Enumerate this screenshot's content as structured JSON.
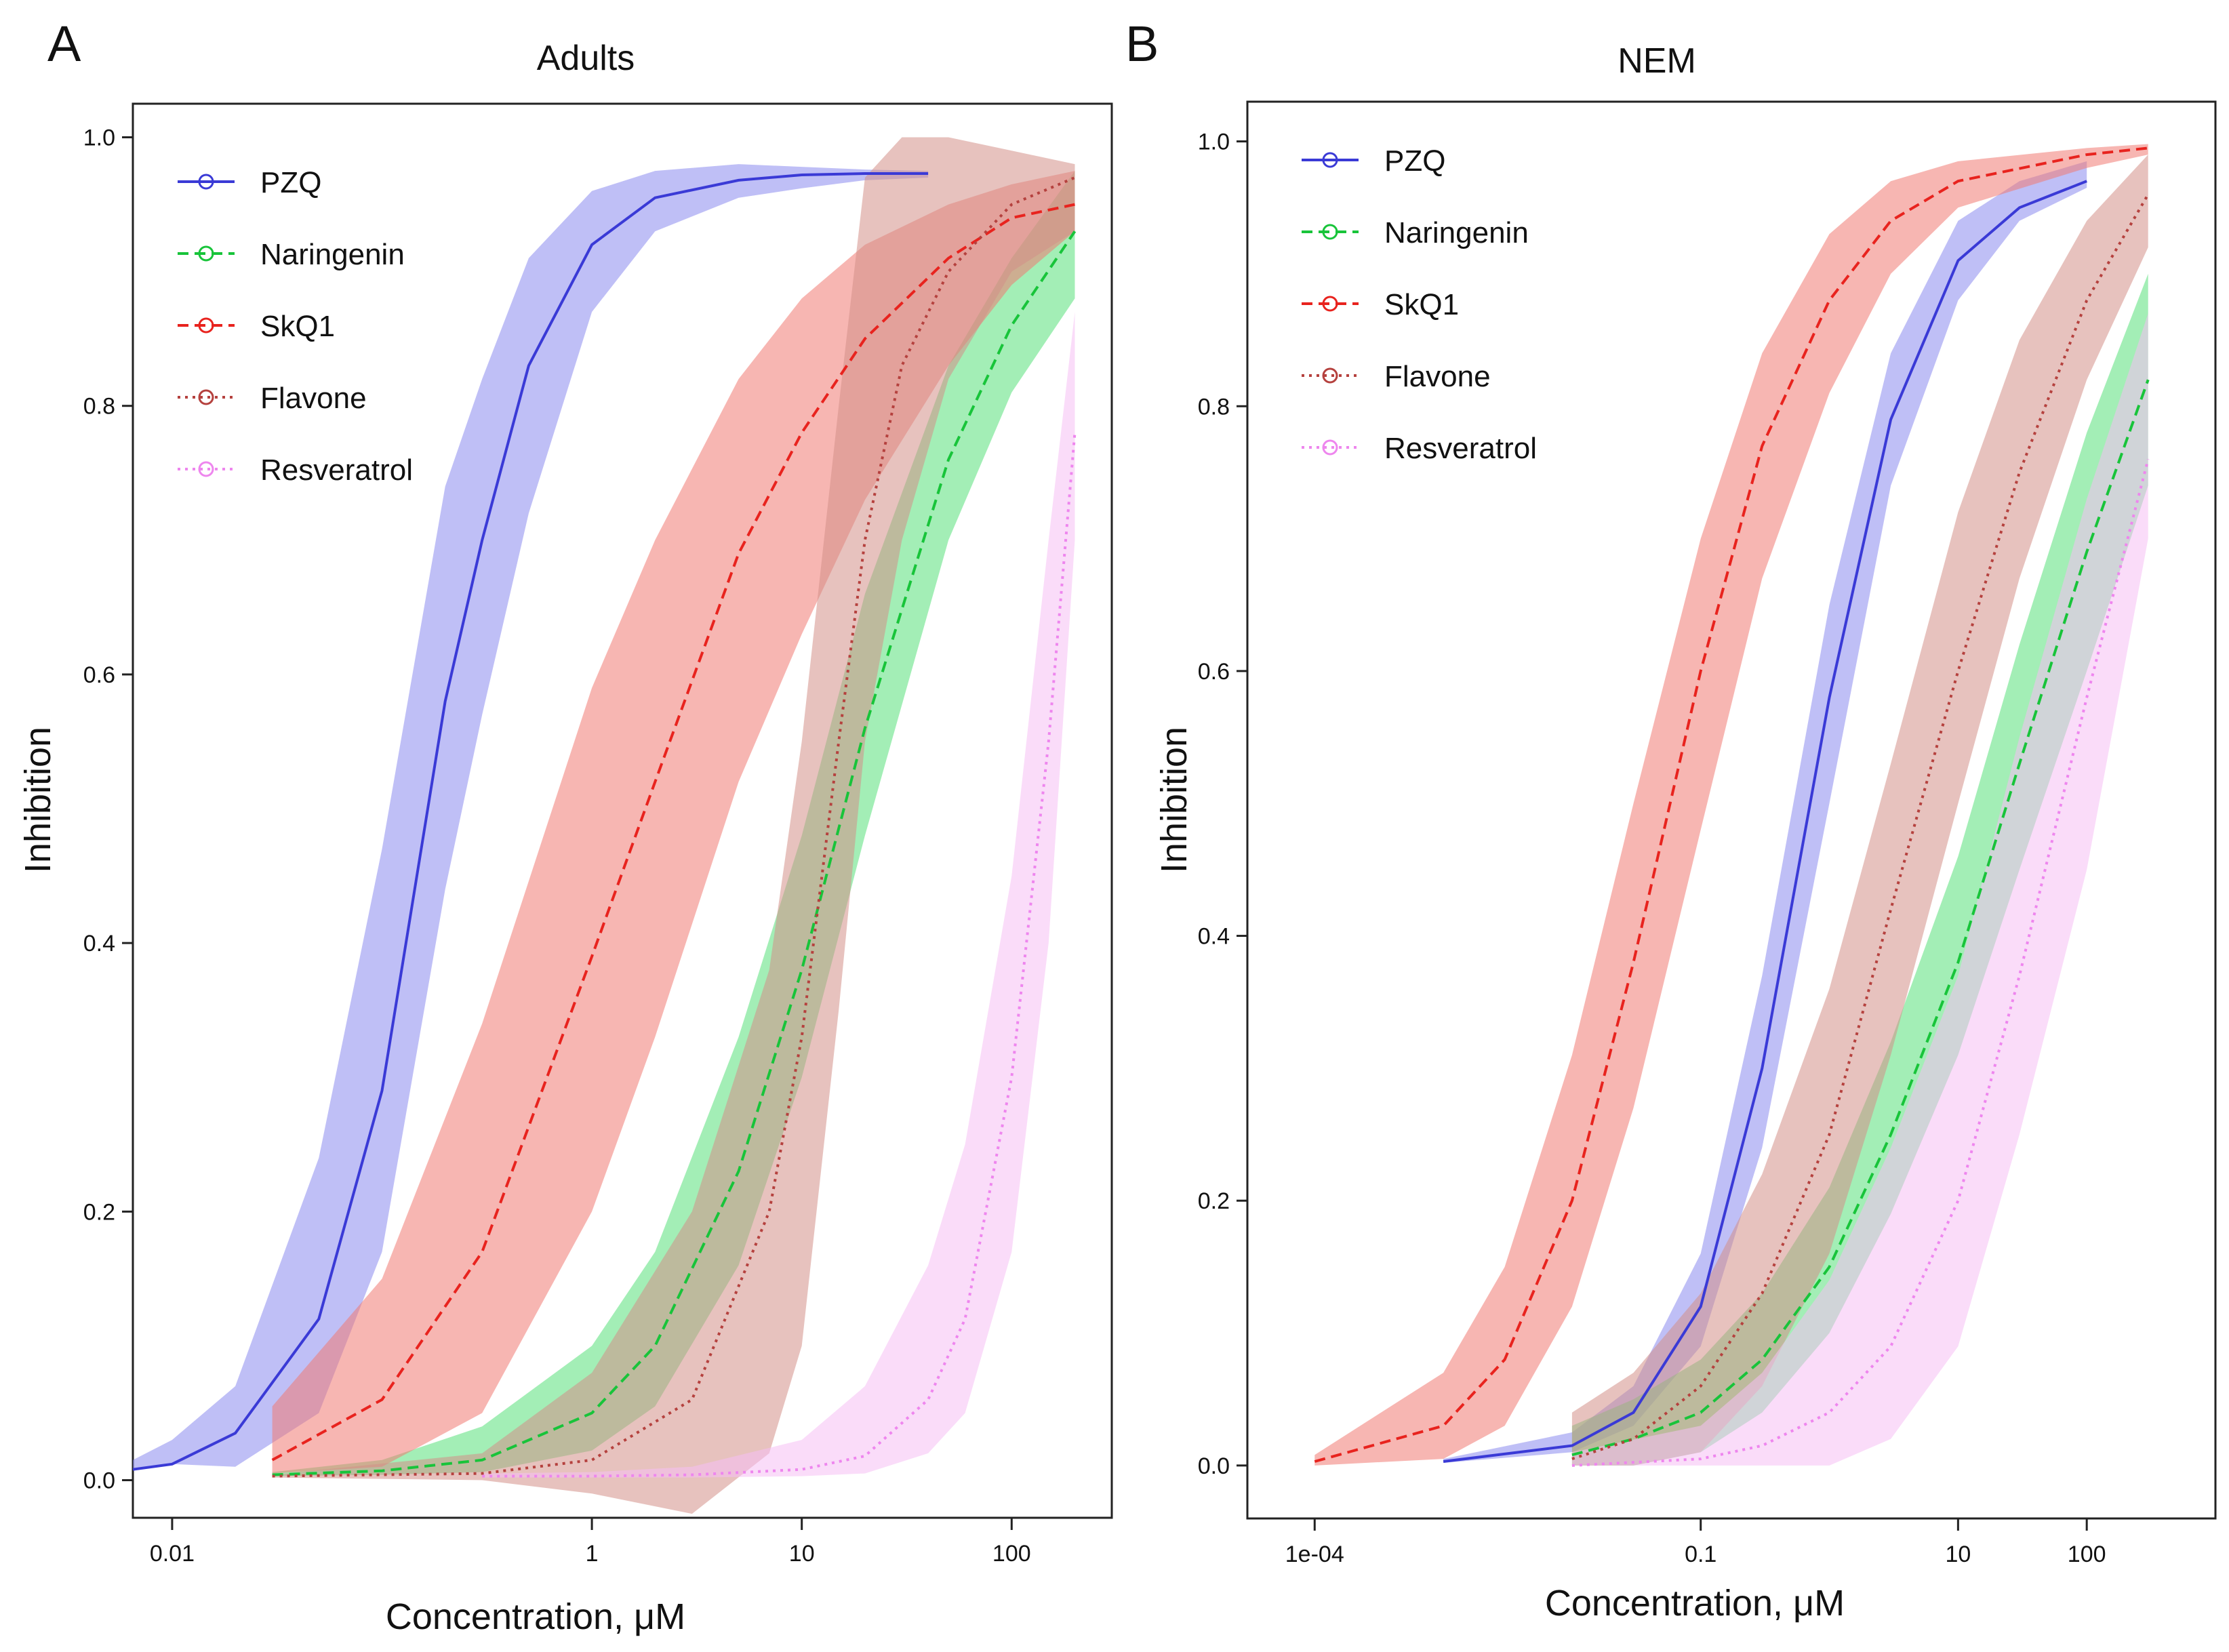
{
  "figure": {
    "panels": [
      "A",
      "B"
    ]
  },
  "colors": {
    "PZQ": "#3a3ad6",
    "Naringenin": "#18c43a",
    "SkQ1": "#e8231e",
    "Flavone": "#b5413e",
    "Resveratrol": "#ee86ee",
    "band_PZQ": "#8b8bef",
    "band_Naringenin": "#58e07a",
    "band_SkQ1": "#f07a72",
    "band_Flavone": "#d39089",
    "band_Resveratrol": "#f6c0f4"
  },
  "chart_data": [
    {
      "panel": "A",
      "type": "line",
      "title": "Adults",
      "xlabel": "Concentration, μM",
      "ylabel": "Inhibition",
      "xscale": "log",
      "xlim": [
        0.0065,
        300
      ],
      "ylim": [
        -0.028,
        1.025
      ],
      "xticks": [
        0.01,
        1,
        10,
        100
      ],
      "xtick_labels": [
        "0.01",
        "1",
        "10",
        "100"
      ],
      "yticks": [
        0.0,
        0.2,
        0.4,
        0.6,
        0.8,
        1.0
      ],
      "ytick_labels": [
        "0.0",
        "0.2",
        "0.4",
        "0.6",
        "0.8",
        "1.0"
      ],
      "legend": {
        "position": "top-left",
        "entries": [
          "PZQ",
          "Naringenin",
          "SkQ1",
          "Flavone",
          "Resveratrol"
        ]
      },
      "series": [
        {
          "name": "PZQ",
          "line_style": "solid",
          "x": [
            0.0065,
            0.01,
            0.02,
            0.05,
            0.1,
            0.2,
            0.3,
            0.5,
            1,
            2,
            5,
            10,
            20,
            40
          ],
          "values": [
            0.008,
            0.012,
            0.035,
            0.12,
            0.29,
            0.58,
            0.7,
            0.83,
            0.92,
            0.955,
            0.968,
            0.972,
            0.973,
            0.973
          ],
          "lower": [
            0.008,
            0.012,
            0.01,
            0.05,
            0.17,
            0.44,
            0.57,
            0.72,
            0.87,
            0.93,
            0.955,
            0.962,
            0.968,
            0.97
          ],
          "upper": [
            0.015,
            0.03,
            0.07,
            0.24,
            0.47,
            0.74,
            0.82,
            0.91,
            0.96,
            0.975,
            0.98,
            0.978,
            0.976,
            0.975
          ]
        },
        {
          "name": "Naringenin",
          "line_style": "dashed",
          "x": [
            0.03,
            0.1,
            0.3,
            1,
            2,
            5,
            10,
            20,
            50,
            100,
            200
          ],
          "values": [
            0.004,
            0.007,
            0.015,
            0.05,
            0.1,
            0.23,
            0.38,
            0.56,
            0.76,
            0.86,
            0.93
          ],
          "lower": [
            0.003,
            0.004,
            0.006,
            0.022,
            0.055,
            0.16,
            0.3,
            0.48,
            0.7,
            0.81,
            0.88
          ],
          "upper": [
            0.006,
            0.015,
            0.04,
            0.1,
            0.17,
            0.33,
            0.48,
            0.66,
            0.83,
            0.91,
            0.975
          ]
        },
        {
          "name": "SkQ1",
          "line_style": "dashed",
          "x": [
            0.03,
            0.1,
            0.3,
            1,
            2,
            5,
            10,
            20,
            50,
            100,
            200
          ],
          "values": [
            0.015,
            0.06,
            0.17,
            0.39,
            0.52,
            0.69,
            0.78,
            0.85,
            0.91,
            0.94,
            0.95
          ],
          "lower": [
            0.005,
            0.01,
            0.05,
            0.2,
            0.33,
            0.52,
            0.63,
            0.73,
            0.83,
            0.89,
            0.93
          ],
          "upper": [
            0.055,
            0.15,
            0.34,
            0.59,
            0.7,
            0.82,
            0.88,
            0.92,
            0.95,
            0.965,
            0.975
          ]
        },
        {
          "name": "Flavone",
          "line_style": "dotted",
          "x": [
            0.03,
            0.3,
            1,
            3,
            7,
            10,
            15,
            20,
            30,
            50,
            100,
            200
          ],
          "values": [
            0.003,
            0.005,
            0.015,
            0.06,
            0.2,
            0.33,
            0.55,
            0.7,
            0.83,
            0.9,
            0.95,
            0.97
          ],
          "lower": [
            0.002,
            0.0,
            -0.01,
            -0.025,
            0.02,
            0.1,
            0.35,
            0.55,
            0.7,
            0.82,
            0.9,
            0.93
          ],
          "upper": [
            0.004,
            0.02,
            0.08,
            0.2,
            0.38,
            0.55,
            0.8,
            0.97,
            1.0,
            1.0,
            0.99,
            0.98
          ]
        },
        {
          "name": "Resveratrol",
          "line_style": "dotted",
          "x": [
            0.3,
            1,
            3,
            10,
            20,
            40,
            60,
            100,
            150,
            200
          ],
          "values": [
            0.003,
            0.003,
            0.004,
            0.008,
            0.018,
            0.06,
            0.12,
            0.3,
            0.55,
            0.78
          ],
          "lower": [
            0.002,
            0.002,
            0.002,
            0.003,
            0.005,
            0.02,
            0.05,
            0.17,
            0.4,
            0.7
          ],
          "upper": [
            0.005,
            0.006,
            0.01,
            0.03,
            0.07,
            0.16,
            0.25,
            0.45,
            0.7,
            0.87
          ]
        }
      ]
    },
    {
      "panel": "B",
      "type": "line",
      "title": "NEM",
      "xlabel": "Concentration, μM",
      "ylabel": "Inhibition",
      "xscale": "log",
      "xlim": [
        3e-05,
        1000
      ],
      "ylim": [
        -0.04,
        1.03
      ],
      "xticks": [
        0.0001,
        0.1,
        10,
        100
      ],
      "xtick_labels": [
        "1e-04",
        "0.1",
        "10",
        "100"
      ],
      "yticks": [
        0.0,
        0.2,
        0.4,
        0.6,
        0.8,
        1.0
      ],
      "ytick_labels": [
        "0.0",
        "0.2",
        "0.4",
        "0.6",
        "0.8",
        "1.0"
      ],
      "legend": {
        "position": "top-left",
        "entries": [
          "PZQ",
          "Naringenin",
          "SkQ1",
          "Flavone",
          "Resveratrol"
        ]
      },
      "series": [
        {
          "name": "PZQ",
          "line_style": "solid",
          "x": [
            0.001,
            0.01,
            0.03,
            0.1,
            0.3,
            1,
            3,
            10,
            30,
            100
          ],
          "values": [
            0.003,
            0.015,
            0.04,
            0.12,
            0.3,
            0.58,
            0.79,
            0.91,
            0.95,
            0.97
          ],
          "lower": [
            0.002,
            0.01,
            0.03,
            0.09,
            0.24,
            0.5,
            0.74,
            0.88,
            0.94,
            0.965
          ],
          "upper": [
            0.005,
            0.025,
            0.06,
            0.16,
            0.37,
            0.65,
            0.84,
            0.94,
            0.97,
            0.985
          ]
        },
        {
          "name": "Naringenin",
          "line_style": "dashed",
          "x": [
            0.01,
            0.03,
            0.1,
            0.3,
            1,
            3,
            10,
            30,
            100,
            300
          ],
          "values": [
            0.008,
            0.02,
            0.04,
            0.08,
            0.15,
            0.25,
            0.38,
            0.53,
            0.69,
            0.82
          ],
          "lower": [
            0.0,
            0.0,
            0.01,
            0.04,
            0.1,
            0.19,
            0.31,
            0.45,
            0.6,
            0.74
          ],
          "upper": [
            0.03,
            0.05,
            0.08,
            0.13,
            0.21,
            0.32,
            0.46,
            0.62,
            0.78,
            0.9
          ]
        },
        {
          "name": "SkQ1",
          "line_style": "dashed",
          "x": [
            0.0001,
            0.001,
            0.003,
            0.01,
            0.03,
            0.1,
            0.3,
            1,
            3,
            10,
            100,
            300
          ],
          "values": [
            0.003,
            0.03,
            0.08,
            0.2,
            0.38,
            0.6,
            0.77,
            0.88,
            0.94,
            0.97,
            0.99,
            0.995
          ],
          "lower": [
            0.0,
            0.005,
            0.03,
            0.12,
            0.27,
            0.48,
            0.67,
            0.81,
            0.9,
            0.95,
            0.98,
            0.99
          ],
          "upper": [
            0.008,
            0.07,
            0.15,
            0.31,
            0.5,
            0.7,
            0.84,
            0.93,
            0.97,
            0.985,
            0.995,
            0.998
          ]
        },
        {
          "name": "Flavone",
          "line_style": "dotted",
          "x": [
            0.01,
            0.03,
            0.1,
            0.3,
            1,
            3,
            10,
            30,
            100,
            300
          ],
          "values": [
            0.005,
            0.02,
            0.06,
            0.13,
            0.25,
            0.42,
            0.6,
            0.75,
            0.88,
            0.96
          ],
          "lower": [
            0.0,
            0.0,
            0.01,
            0.06,
            0.16,
            0.31,
            0.5,
            0.67,
            0.82,
            0.92
          ],
          "upper": [
            0.04,
            0.07,
            0.13,
            0.22,
            0.36,
            0.53,
            0.72,
            0.85,
            0.94,
            0.99
          ]
        },
        {
          "name": "Resveratrol",
          "line_style": "dotted",
          "x": [
            0.01,
            0.1,
            0.3,
            1,
            3,
            10,
            30,
            100,
            300
          ],
          "values": [
            0.0,
            0.005,
            0.015,
            0.04,
            0.09,
            0.2,
            0.37,
            0.58,
            0.76
          ],
          "lower": [
            0.0,
            0.0,
            0.0,
            0.0,
            0.02,
            0.09,
            0.25,
            0.45,
            0.7
          ],
          "upper": [
            0.01,
            0.03,
            0.07,
            0.14,
            0.24,
            0.37,
            0.55,
            0.73,
            0.87
          ]
        }
      ]
    }
  ]
}
